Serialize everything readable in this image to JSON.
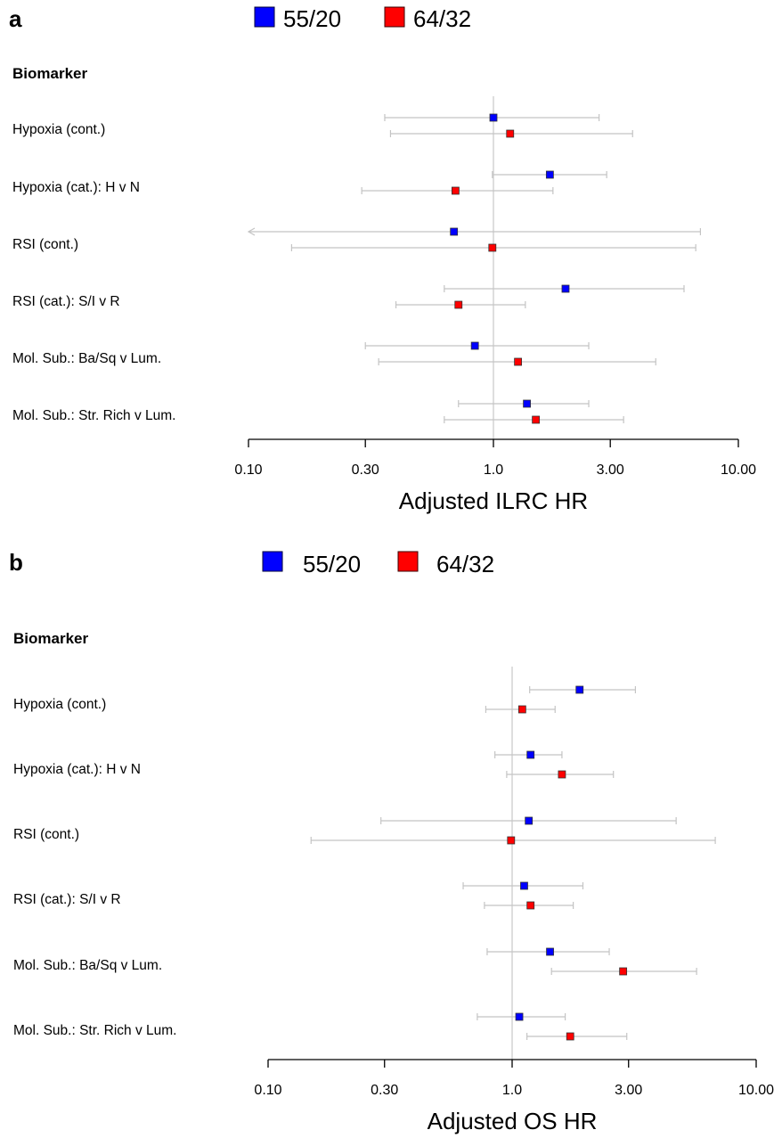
{
  "chart_data": [
    {
      "panel_label": "a",
      "type": "forest",
      "title": "",
      "section_heading": "Biomarker",
      "xlabel": "Adjusted ILRC HR",
      "ylabel": "",
      "x_scale": "log",
      "xlim": [
        0.1,
        10
      ],
      "xticks": [
        "0.10",
        "0.30",
        "1.0",
        "3.00",
        "10.00"
      ],
      "xtick_values": [
        0.1,
        0.3,
        1.0,
        3.0,
        10.0
      ],
      "reference_line": 1.0,
      "grid": false,
      "legend_position": "top",
      "series": [
        {
          "name": "55/20",
          "color": "#0000ff"
        },
        {
          "name": "64/32",
          "color": "#ff0000"
        }
      ],
      "categories": [
        "Hypoxia (cont.)",
        "Hypoxia (cat.): H v N",
        "RSI (cont.)",
        "RSI (cat.): S/I v R",
        "Mol. Sub.: Ba/Sq v Lum.",
        "Mol. Sub.: Str. Rich v Lum."
      ],
      "points": [
        {
          "category": 0,
          "series": 0,
          "hr": 1.0,
          "lo": 0.36,
          "hi": 2.7
        },
        {
          "category": 0,
          "series": 1,
          "hr": 1.17,
          "lo": 0.38,
          "hi": 3.7
        },
        {
          "category": 1,
          "series": 0,
          "hr": 1.7,
          "lo": 0.99,
          "hi": 2.9
        },
        {
          "category": 1,
          "series": 1,
          "hr": 0.7,
          "lo": 0.29,
          "hi": 1.75
        },
        {
          "category": 2,
          "series": 0,
          "hr": 0.69,
          "lo": 0.1,
          "hi": 7.0,
          "lo_truncated": true
        },
        {
          "category": 2,
          "series": 1,
          "hr": 0.99,
          "lo": 0.15,
          "hi": 6.7
        },
        {
          "category": 3,
          "series": 0,
          "hr": 1.97,
          "lo": 0.63,
          "hi": 6.0
        },
        {
          "category": 3,
          "series": 1,
          "hr": 0.72,
          "lo": 0.4,
          "hi": 1.35
        },
        {
          "category": 4,
          "series": 0,
          "hr": 0.84,
          "lo": 0.3,
          "hi": 2.45
        },
        {
          "category": 4,
          "series": 1,
          "hr": 1.26,
          "lo": 0.34,
          "hi": 4.6
        },
        {
          "category": 5,
          "series": 0,
          "hr": 1.37,
          "lo": 0.72,
          "hi": 2.45
        },
        {
          "category": 5,
          "series": 1,
          "hr": 1.49,
          "lo": 0.63,
          "hi": 3.4
        }
      ]
    },
    {
      "panel_label": "b",
      "type": "forest",
      "title": "",
      "section_heading": "Biomarker",
      "xlabel": "Adjusted OS HR",
      "ylabel": "",
      "x_scale": "log",
      "xlim": [
        0.1,
        10
      ],
      "xticks": [
        "0.10",
        "0.30",
        "1.0",
        "3.00",
        "10.00"
      ],
      "xtick_values": [
        0.1,
        0.3,
        1.0,
        3.0,
        10.0
      ],
      "reference_line": 1.0,
      "grid": false,
      "legend_position": "top",
      "series": [
        {
          "name": "55/20",
          "color": "#0000ff"
        },
        {
          "name": "64/32",
          "color": "#ff0000"
        }
      ],
      "categories": [
        "Hypoxia (cont.)",
        "Hypoxia (cat.): H v N",
        "RSI (cont.)",
        "RSI (cat.): S/I v R",
        "Mol. Sub.: Ba/Sq v Lum.",
        "Mol. Sub.: Str. Rich v Lum."
      ],
      "points": [
        {
          "category": 0,
          "series": 0,
          "hr": 1.89,
          "lo": 1.18,
          "hi": 3.2
        },
        {
          "category": 0,
          "series": 1,
          "hr": 1.1,
          "lo": 0.78,
          "hi": 1.5
        },
        {
          "category": 1,
          "series": 0,
          "hr": 1.19,
          "lo": 0.85,
          "hi": 1.6
        },
        {
          "category": 1,
          "series": 1,
          "hr": 1.6,
          "lo": 0.95,
          "hi": 2.6
        },
        {
          "category": 2,
          "series": 0,
          "hr": 1.17,
          "lo": 0.29,
          "hi": 4.7
        },
        {
          "category": 2,
          "series": 1,
          "hr": 0.99,
          "lo": 0.15,
          "hi": 6.8
        },
        {
          "category": 3,
          "series": 0,
          "hr": 1.12,
          "lo": 0.63,
          "hi": 1.95
        },
        {
          "category": 3,
          "series": 1,
          "hr": 1.19,
          "lo": 0.77,
          "hi": 1.78
        },
        {
          "category": 4,
          "series": 0,
          "hr": 1.43,
          "lo": 0.79,
          "hi": 2.5
        },
        {
          "category": 4,
          "series": 1,
          "hr": 2.85,
          "lo": 1.45,
          "hi": 5.7
        },
        {
          "category": 5,
          "series": 0,
          "hr": 1.07,
          "lo": 0.72,
          "hi": 1.65
        },
        {
          "category": 5,
          "series": 1,
          "hr": 1.73,
          "lo": 1.15,
          "hi": 2.95
        }
      ]
    }
  ]
}
